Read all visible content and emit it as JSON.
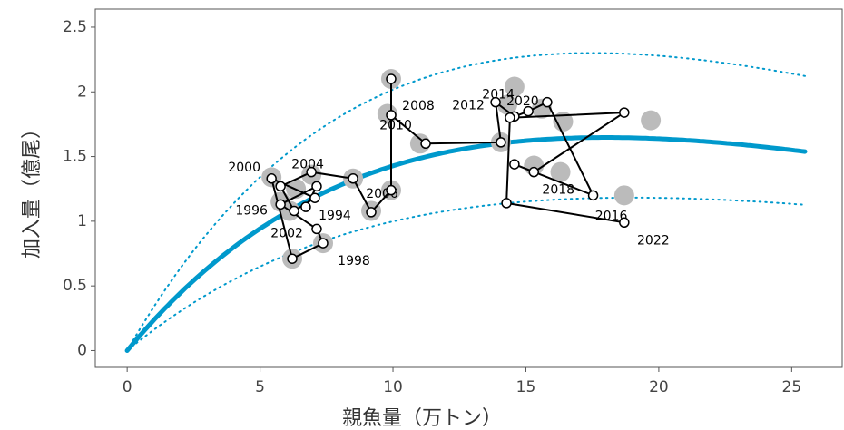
{
  "chart_data": {
    "type": "scatter",
    "x_label": "親魚量（万トン）",
    "y_label": "加入量（億尾）",
    "xlim": [
      -1.2,
      26.9
    ],
    "ylim": [
      -0.13,
      2.64
    ],
    "xticks": [
      0,
      5,
      10,
      15,
      20,
      25
    ],
    "yticks": [
      0,
      0.5,
      1,
      1.5,
      2,
      2.5
    ],
    "curves": [
      {
        "a": 0.249,
        "b": 0.0556,
        "xmax": 25.5,
        "color": "#0099cc",
        "style": "solid"
      },
      {
        "a": 0.357,
        "b": 0.0571,
        "xmax": 25.5,
        "color": "#0099cc",
        "style": "dotted"
      },
      {
        "a": 0.169,
        "b": 0.0526,
        "xmax": 25.5,
        "color": "#0099cc",
        "style": "dotted"
      }
    ],
    "gray_points": {
      "color": "#bbbbbb",
      "x": [
        5.43,
        5.77,
        6.11,
        6.21,
        6.93,
        7.37,
        8.5,
        9.18,
        9.93,
        9.79,
        9.93,
        11.02,
        14.57,
        14.06,
        14.3,
        15.3,
        15.6,
        16.3,
        16.4,
        18.7,
        19.7,
        6.35
      ],
      "y": [
        1.34,
        1.15,
        1.08,
        0.71,
        1.36,
        0.83,
        1.33,
        1.08,
        2.1,
        1.83,
        1.24,
        1.6,
        2.04,
        1.61,
        1.9,
        1.43,
        1.87,
        1.38,
        1.77,
        1.2,
        1.78,
        1.25
      ]
    },
    "series": {
      "color": "#000000",
      "x": [
        6.72,
        7.13,
        5.77,
        7.13,
        7.37,
        6.21,
        5.43,
        7.06,
        6.28,
        5.77,
        6.93,
        8.5,
        9.18,
        9.93,
        9.93,
        9.93,
        11.23,
        14.06,
        13.86,
        14.57,
        15.09,
        15.8,
        17.53,
        14.57,
        15.3,
        18.7,
        14.4,
        14.27,
        18.7
      ],
      "y": [
        1.11,
        1.27,
        1.13,
        0.94,
        0.83,
        0.71,
        1.33,
        1.18,
        1.08,
        1.27,
        1.38,
        1.33,
        1.07,
        1.24,
        2.1,
        1.82,
        1.6,
        1.61,
        1.92,
        1.81,
        1.85,
        1.92,
        1.2,
        1.44,
        1.38,
        1.84,
        1.8,
        1.14,
        0.99
      ],
      "labels": [
        "1994",
        null,
        "1996",
        null,
        "1998",
        null,
        "2000",
        null,
        "2002",
        null,
        "2004",
        null,
        "2006",
        null,
        "2008",
        null,
        "2010",
        null,
        "2012",
        null,
        "2014",
        null,
        "2016",
        null,
        "2018",
        null,
        "2020",
        null,
        "2022"
      ]
    }
  }
}
